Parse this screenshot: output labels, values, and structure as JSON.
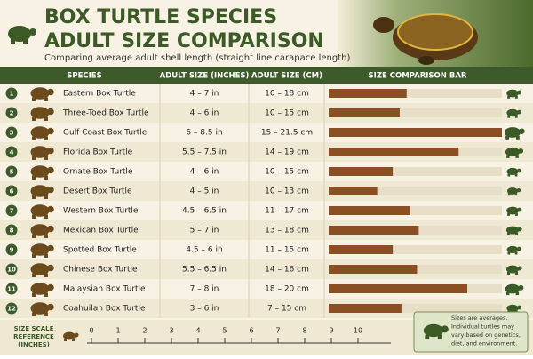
{
  "header": {
    "title_line1": "BOX TURTLE SPECIES",
    "title_line2": "ADULT SIZE COMPARISON",
    "subtitle": "Comparing average adult shell length (straight line carapace length)"
  },
  "table": {
    "columns": [
      "SPECIES",
      "ADULT SIZE (INCHES)",
      "ADULT SIZE (CM)",
      "SIZE COMPARISON BAR"
    ],
    "rows": [
      {
        "num": "1",
        "species": "Eastern Box Turtle",
        "inches": "4 – 7 in",
        "cm": "10 – 18 cm",
        "bar": 0.45
      },
      {
        "num": "2",
        "species": "Three-Toed Box Turtle",
        "inches": "4 – 6 in",
        "cm": "10 – 15 cm",
        "bar": 0.41
      },
      {
        "num": "3",
        "species": "Gulf Coast Box Turtle",
        "inches": "6 – 8.5 in",
        "cm": "15 – 21.5 cm",
        "bar": 1.0
      },
      {
        "num": "4",
        "species": "Florida Box Turtle",
        "inches": "5.5 – 7.5 in",
        "cm": "14 – 19 cm",
        "bar": 0.75
      },
      {
        "num": "5",
        "species": "Ornate Box Turtle",
        "inches": "4 – 6 in",
        "cm": "10 – 15 cm",
        "bar": 0.37
      },
      {
        "num": "6",
        "species": "Desert Box Turtle",
        "inches": "4 – 5 in",
        "cm": "10 – 13 cm",
        "bar": 0.28
      },
      {
        "num": "7",
        "species": "Western Box Turtle",
        "inches": "4.5 – 6.5 in",
        "cm": "11 – 17 cm",
        "bar": 0.47
      },
      {
        "num": "8",
        "species": "Mexican Box Turtle",
        "inches": "5 – 7 in",
        "cm": "13 – 18 cm",
        "bar": 0.52
      },
      {
        "num": "9",
        "species": "Spotted Box Turtle",
        "inches": "4.5 – 6 in",
        "cm": "11 – 15 cm",
        "bar": 0.37
      },
      {
        "num": "10",
        "species": "Chinese Box Turtle",
        "inches": "5.5 – 6.5 in",
        "cm": "14 – 16 cm",
        "bar": 0.51
      },
      {
        "num": "11",
        "species": "Malaysian Box Turtle",
        "inches": "7 – 8 in",
        "cm": "18 – 20 cm",
        "bar": 0.8
      },
      {
        "num": "12",
        "species": "Coahuilan Box Turtle",
        "inches": "3 – 6 in",
        "cm": "7 – 15 cm",
        "bar": 0.42
      }
    ]
  },
  "scale": {
    "label_lines": [
      "SIZE SCALE",
      "REFERENCE",
      "(INCHES)"
    ],
    "ticks": [
      0,
      1,
      2,
      3,
      4,
      5,
      6,
      7,
      8,
      9,
      10
    ]
  },
  "note": [
    "Sizes are averages.",
    "Individual turtles may",
    "vary based on genetics,",
    "diet, and environment."
  ]
}
